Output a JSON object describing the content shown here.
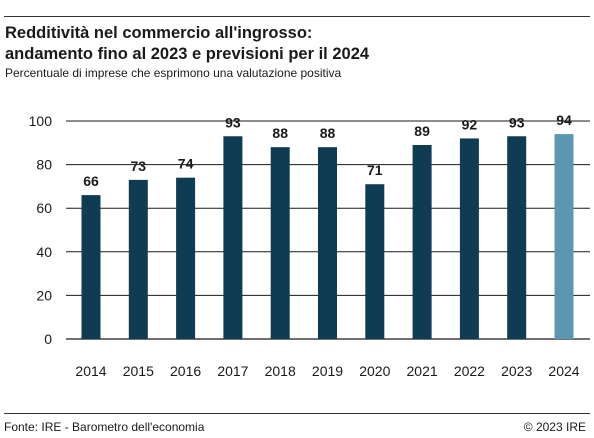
{
  "header": {
    "title_line1": "Redditività nel commercio all'ingrosso:",
    "title_line2": "andamento fino al 2023 e previsioni per il 2024",
    "subtitle": "Percentuale di imprese che esprimono una valutazione positiva"
  },
  "footer": {
    "source": "Fonte: IRE - Barometro dell'economia",
    "copyright": "© 2023 IRE"
  },
  "colors": {
    "actual": "#0f3c52",
    "forecast": "#5b98b0",
    "grid": "#1a1a1a"
  },
  "chart_data": {
    "type": "bar",
    "categories": [
      "2014",
      "2015",
      "2016",
      "2017",
      "2018",
      "2019",
      "2020",
      "2021",
      "2022",
      "2023",
      "2024"
    ],
    "values": [
      66,
      73,
      74,
      93,
      88,
      88,
      71,
      89,
      92,
      93,
      94
    ],
    "forecast_categories": [
      "2024"
    ],
    "ylim": [
      0,
      100
    ],
    "yticks": [
      0,
      20,
      40,
      60,
      80,
      100
    ],
    "grid": true,
    "data_labels": true
  }
}
